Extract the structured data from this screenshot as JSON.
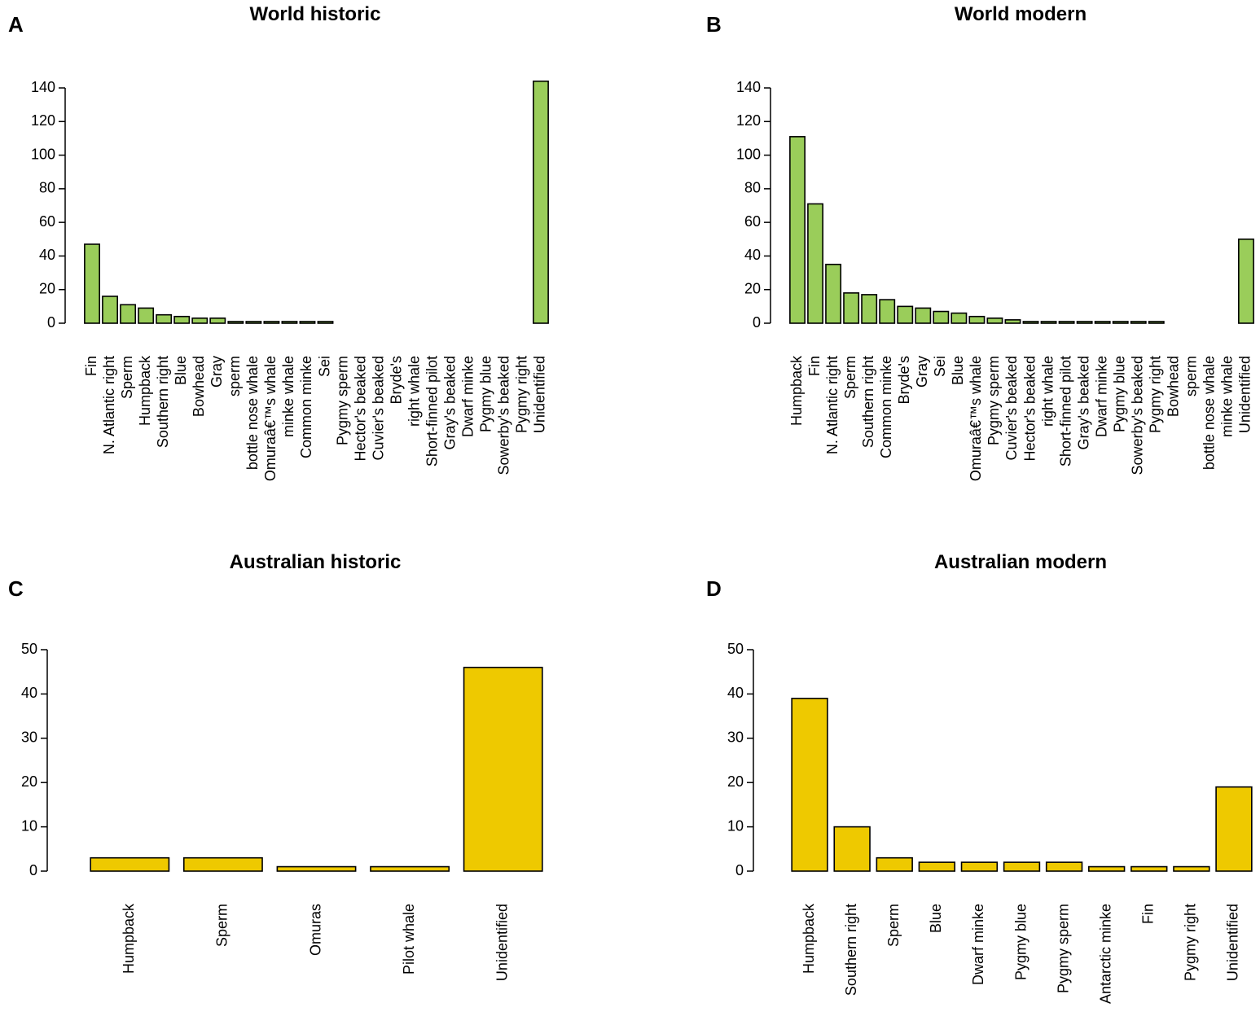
{
  "colors": {
    "green": "#9ACD5A",
    "yellow": "#EEC900",
    "stroke": "#000000"
  },
  "chart_data": [
    {
      "type": "bar",
      "panel": "A",
      "title": "World historic",
      "color": "#9ACD5A",
      "ylim": [
        0,
        140
      ],
      "yticks": [
        0,
        20,
        40,
        60,
        80,
        100,
        120,
        140
      ],
      "categories": [
        "Fin",
        "N. Atlantic right",
        "Sperm",
        "Humpback",
        "Southern right",
        "Blue",
        "Bowhead",
        "Gray",
        "sperm",
        "bottle nose whale",
        "Omuraâ€™s whale",
        "minke whale",
        "Common minke",
        "Sei",
        "Pygmy sperm",
        "Hector's beaked",
        "Cuvier's beaked",
        "Bryde's",
        "right whale",
        "Short-finned pilot",
        "Gray's beaked",
        "Dwarf minke",
        "Pygmy blue",
        "Sowerby's beaked",
        "Pygmy right",
        "Unidentified"
      ],
      "values": [
        47,
        16,
        11,
        9,
        5,
        4,
        3,
        3,
        1,
        1,
        1,
        1,
        1,
        1,
        0,
        0,
        0,
        0,
        0,
        0,
        0,
        0,
        0,
        0,
        0,
        144
      ]
    },
    {
      "type": "bar",
      "panel": "B",
      "title": "World modern",
      "color": "#9ACD5A",
      "ylim": [
        0,
        140
      ],
      "yticks": [
        0,
        20,
        40,
        60,
        80,
        100,
        120,
        140
      ],
      "categories": [
        "Humpback",
        "Fin",
        "N. Atlantic right",
        "Sperm",
        "Southern right",
        "Common minke",
        "Bryde's",
        "Gray",
        "Sei",
        "Blue",
        "Omuraâ€™s whale",
        "Pygmy sperm",
        "Cuvier's beaked",
        "Hector's beaked",
        "right whale",
        "Short-finned pilot",
        "Gray's beaked",
        "Dwarf minke",
        "Pygmy blue",
        "Sowerby's beaked",
        "Pygmy right",
        "Bowhead",
        "sperm",
        "bottle nose whale",
        "minke whale",
        "Unidentified"
      ],
      "values": [
        111,
        71,
        35,
        18,
        17,
        14,
        10,
        9,
        7,
        6,
        4,
        3,
        2,
        1,
        1,
        1,
        1,
        1,
        1,
        1,
        1,
        0,
        0,
        0,
        0,
        50
      ]
    },
    {
      "type": "bar",
      "panel": "C",
      "title": "Australian historic",
      "color": "#EEC900",
      "ylim": [
        0,
        50
      ],
      "yticks": [
        0,
        10,
        20,
        30,
        40,
        50
      ],
      "categories": [
        "Humpback",
        "Sperm",
        "Omuras",
        "Pilot whale",
        "Unidentified"
      ],
      "values": [
        3,
        3,
        1,
        1,
        46
      ]
    },
    {
      "type": "bar",
      "panel": "D",
      "title": "Australian modern",
      "color": "#EEC900",
      "ylim": [
        0,
        50
      ],
      "yticks": [
        0,
        10,
        20,
        30,
        40,
        50
      ],
      "categories": [
        "Humpback",
        "Southern right",
        "Sperm",
        "Blue",
        "Dwarf minke",
        "Pygmy blue",
        "Pygmy sperm",
        "Antarctic minke",
        "Fin",
        "Pygmy right",
        "Unidentified"
      ],
      "values": [
        39,
        10,
        3,
        2,
        2,
        2,
        2,
        1,
        1,
        1,
        19
      ]
    }
  ]
}
